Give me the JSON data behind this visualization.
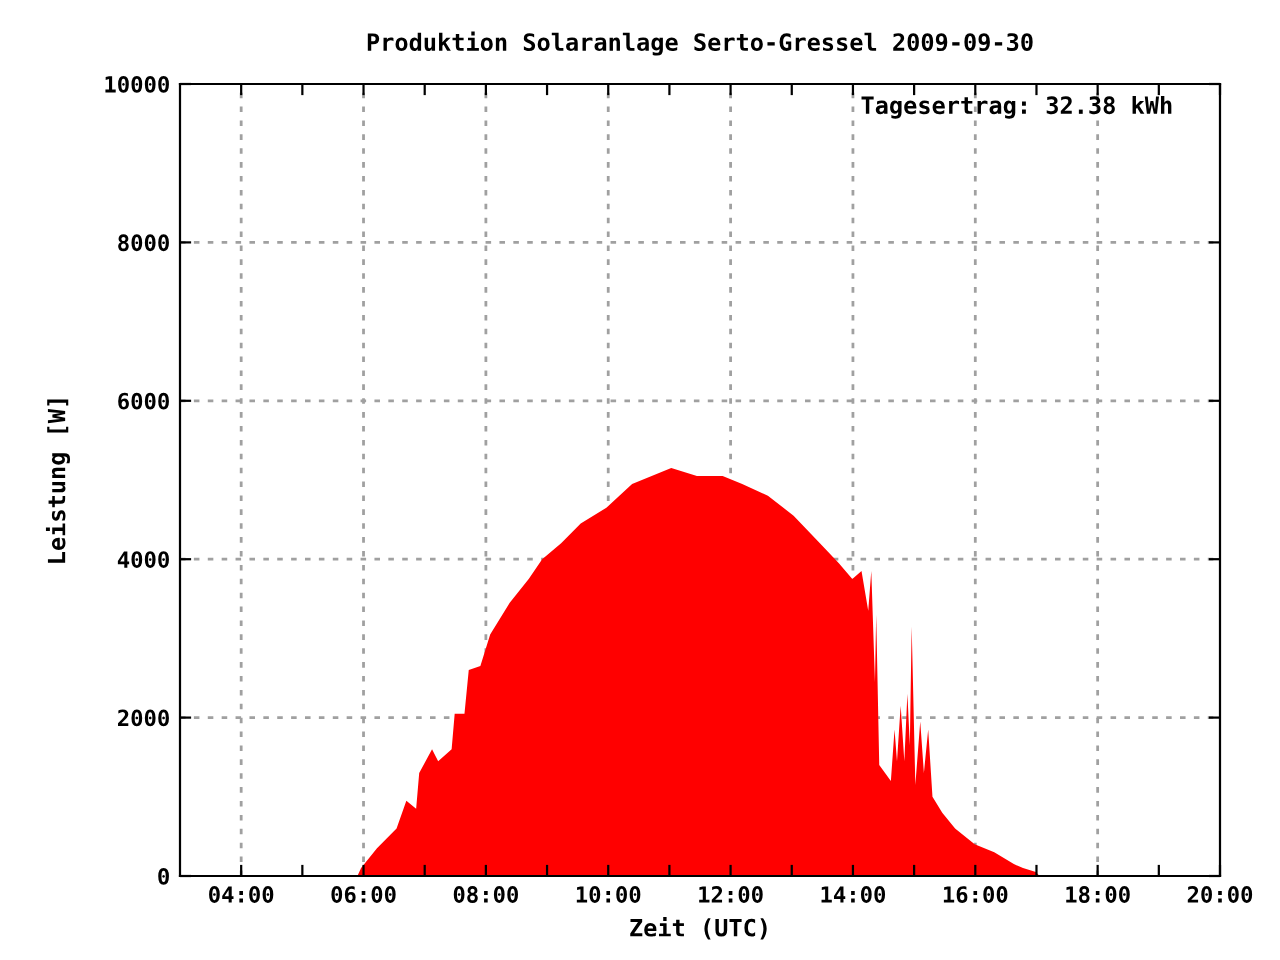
{
  "chart_data": {
    "type": "area",
    "title": "Produktion Solaranlage Serto-Gressel 2009-09-30",
    "xlabel": "Zeit (UTC)",
    "ylabel": "Leistung [W]",
    "annotations": [
      "Tagesertrag: 32.38 kWh"
    ],
    "x": [
      5.9,
      5.96,
      6.22,
      6.54,
      6.7,
      6.86,
      6.91,
      7.12,
      7.22,
      7.44,
      7.49,
      7.65,
      7.72,
      7.91,
      8.07,
      8.39,
      8.7,
      8.92,
      9.23,
      9.55,
      9.97,
      10.39,
      11.03,
      11.45,
      11.87,
      12.19,
      12.61,
      13.03,
      13.46,
      13.77,
      13.99,
      14.14,
      14.25,
      14.3,
      14.36,
      14.38,
      14.43,
      14.62,
      14.68,
      14.72,
      14.78,
      14.84,
      14.89,
      14.93,
      14.96,
      15.02,
      15.1,
      15.16,
      15.23,
      15.3,
      15.46,
      15.67,
      15.99,
      16.31,
      16.63,
      16.78,
      16.99,
      17.05
    ],
    "series": [
      {
        "color": "#ff0000",
        "values": [
          0,
          100,
          350,
          600,
          950,
          850,
          1300,
          1600,
          1450,
          1600,
          2050,
          2050,
          2600,
          2650,
          3050,
          3450,
          3750,
          4000,
          4200,
          4450,
          4650,
          4950,
          5150,
          5050,
          5050,
          4950,
          4800,
          4550,
          4200,
          3950,
          3750,
          3850,
          3350,
          3850,
          2450,
          3300,
          1400,
          1200,
          1850,
          1450,
          2150,
          1450,
          2300,
          1650,
          3150,
          1150,
          1950,
          1300,
          1850,
          1000,
          800,
          600,
          400,
          300,
          150,
          100,
          50,
          0
        ]
      }
    ],
    "xlim": [
      3,
      20
    ],
    "ylim": [
      0,
      10000
    ],
    "xticks": [
      {
        "value": 4,
        "label": "04:00"
      },
      {
        "value": 5,
        "label": null
      },
      {
        "value": 6,
        "label": "06:00"
      },
      {
        "value": 7,
        "label": null
      },
      {
        "value": 8,
        "label": "08:00"
      },
      {
        "value": 9,
        "label": null
      },
      {
        "value": 10,
        "label": "10:00"
      },
      {
        "value": 11,
        "label": null
      },
      {
        "value": 12,
        "label": "12:00"
      },
      {
        "value": 13,
        "label": null
      },
      {
        "value": 14,
        "label": "14:00"
      },
      {
        "value": 15,
        "label": null
      },
      {
        "value": 16,
        "label": "16:00"
      },
      {
        "value": 17,
        "label": null
      },
      {
        "value": 18,
        "label": "18:00"
      },
      {
        "value": 19,
        "label": null
      },
      {
        "value": 20,
        "label": "20:00"
      }
    ],
    "yticks": [
      0,
      2000,
      4000,
      6000,
      8000,
      10000
    ],
    "grid": true
  }
}
